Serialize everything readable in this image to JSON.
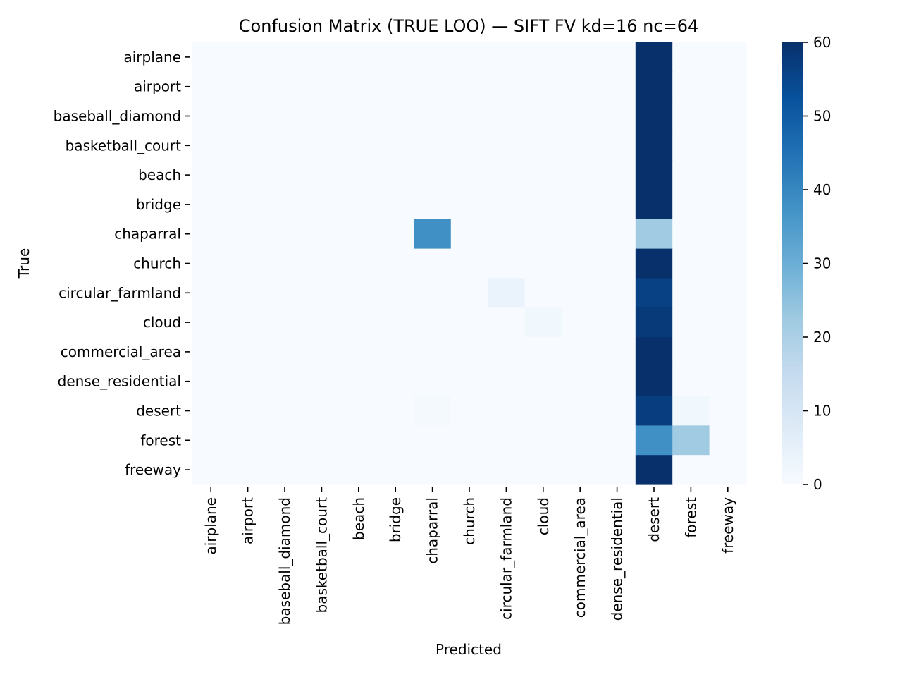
{
  "chart_data": {
    "type": "heatmap",
    "title": "Confusion Matrix (TRUE LOO) — SIFT FV kd=16 nc=64",
    "xlabel": "Predicted",
    "ylabel": "True",
    "x_categories": [
      "airplane",
      "airport",
      "baseball_diamond",
      "basketball_court",
      "beach",
      "bridge",
      "chaparral",
      "church",
      "circular_farmland",
      "cloud",
      "commercial_area",
      "dense_residential",
      "desert",
      "forest",
      "freeway"
    ],
    "y_categories": [
      "airplane",
      "airport",
      "baseball_diamond",
      "basketball_court",
      "beach",
      "bridge",
      "chaparral",
      "church",
      "circular_farmland",
      "cloud",
      "commercial_area",
      "dense_residential",
      "desert",
      "forest",
      "freeway"
    ],
    "matrix": [
      [
        0,
        0,
        0,
        0,
        0,
        0,
        0,
        0,
        0,
        0,
        0,
        0,
        60,
        0,
        0
      ],
      [
        0,
        0,
        0,
        0,
        0,
        0,
        0,
        0,
        0,
        0,
        0,
        0,
        60,
        0,
        0
      ],
      [
        0,
        0,
        0,
        0,
        0,
        0,
        0,
        0,
        0,
        0,
        0,
        0,
        60,
        0,
        0
      ],
      [
        0,
        0,
        0,
        0,
        0,
        0,
        0,
        0,
        0,
        0,
        0,
        0,
        60,
        0,
        0
      ],
      [
        0,
        0,
        0,
        0,
        0,
        0,
        0,
        0,
        0,
        0,
        0,
        0,
        60,
        0,
        0
      ],
      [
        0,
        0,
        0,
        0,
        0,
        0,
        0,
        0,
        0,
        0,
        0,
        0,
        60,
        0,
        0
      ],
      [
        0,
        0,
        0,
        0,
        0,
        0,
        38,
        0,
        0,
        0,
        0,
        0,
        22,
        0,
        0
      ],
      [
        0,
        0,
        0,
        0,
        0,
        0,
        0,
        0,
        0,
        0,
        0,
        0,
        60,
        0,
        0
      ],
      [
        0,
        0,
        0,
        0,
        0,
        0,
        0,
        0,
        4,
        0,
        0,
        0,
        56,
        0,
        0
      ],
      [
        0,
        0,
        0,
        0,
        0,
        0,
        0,
        0,
        0,
        2,
        0,
        0,
        58,
        0,
        0
      ],
      [
        0,
        0,
        0,
        0,
        0,
        0,
        0,
        0,
        0,
        0,
        0,
        0,
        60,
        0,
        0
      ],
      [
        0,
        0,
        0,
        0,
        0,
        0,
        0,
        0,
        0,
        0,
        0,
        0,
        60,
        0,
        0
      ],
      [
        0,
        0,
        0,
        0,
        0,
        0,
        1,
        0,
        0,
        0,
        0,
        0,
        57,
        2,
        0
      ],
      [
        0,
        0,
        0,
        0,
        0,
        0,
        0,
        0,
        0,
        0,
        0,
        0,
        38,
        22,
        0
      ],
      [
        0,
        0,
        0,
        0,
        0,
        0,
        0,
        0,
        0,
        0,
        0,
        0,
        60,
        0,
        0
      ]
    ],
    "colorbar": {
      "colormap": "Blues",
      "vmin": 0,
      "vmax": 60,
      "ticks": [
        "0",
        "10",
        "20",
        "30",
        "40",
        "50",
        "60"
      ]
    },
    "grid": false,
    "legend": "colorbar-right"
  }
}
